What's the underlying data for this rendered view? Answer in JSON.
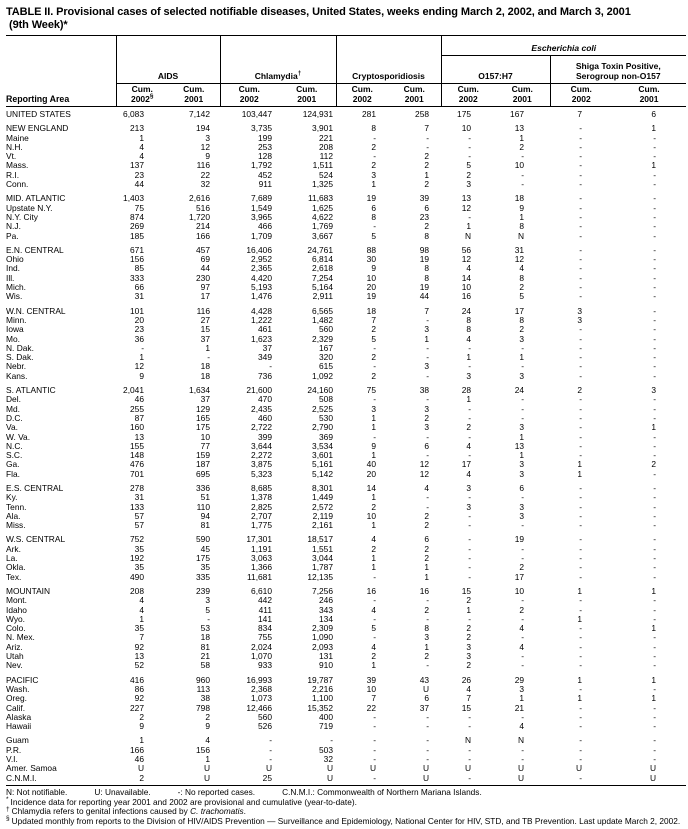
{
  "title": {
    "line1": "TABLE II. Provisional cases of selected notifiable diseases, United States, weeks ending March 2, 2002, and March 3, 2001",
    "line2": "(9th Week)*"
  },
  "table": {
    "reporting_area_label": "Reporting Area",
    "ecoli_spanner": "Escherichia coli",
    "groups": [
      {
        "label": "AIDS",
        "cols": [
          "Cum.\n2002§",
          "Cum.\n2001"
        ]
      },
      {
        "label": "Chlamydia†",
        "cols": [
          "Cum.\n2002",
          "Cum.\n2001"
        ]
      },
      {
        "label": "Cryptosporidiosis",
        "cols": [
          "Cum.\n2002",
          "Cum.\n2001"
        ]
      },
      {
        "label": "O157:H7",
        "cols": [
          "Cum.\n2002",
          "Cum.\n2001"
        ],
        "parent": "Escherichia coli"
      },
      {
        "label": "Shiga Toxin Positive,\nSerogroup non-O157",
        "cols": [
          "Cum.\n2002",
          "Cum.\n2001"
        ],
        "parent": "Escherichia coli"
      }
    ],
    "rows": [
      {
        "area": "UNITED STATES",
        "group_start": true,
        "values": [
          "6,083",
          "7,142",
          "103,447",
          "124,931",
          "281",
          "258",
          "175",
          "167",
          "7",
          "6"
        ]
      },
      {
        "area": "NEW ENGLAND",
        "group_start": true,
        "values": [
          "213",
          "194",
          "3,735",
          "3,901",
          "8",
          "7",
          "10",
          "13",
          "-",
          "1"
        ]
      },
      {
        "area": "Maine",
        "group_start": false,
        "values": [
          "1",
          "3",
          "199",
          "221",
          "-",
          "-",
          "-",
          "1",
          "-",
          "-"
        ]
      },
      {
        "area": "N.H.",
        "group_start": false,
        "values": [
          "4",
          "12",
          "253",
          "208",
          "2",
          "-",
          "-",
          "2",
          "-",
          "-"
        ]
      },
      {
        "area": "Vt.",
        "group_start": false,
        "values": [
          "4",
          "9",
          "128",
          "112",
          "-",
          "2",
          "-",
          "-",
          "-",
          "-"
        ]
      },
      {
        "area": "Mass.",
        "group_start": false,
        "values": [
          "137",
          "116",
          "1,792",
          "1,511",
          "2",
          "2",
          "5",
          "10",
          "-",
          "1"
        ]
      },
      {
        "area": "R.I.",
        "group_start": false,
        "values": [
          "23",
          "22",
          "452",
          "524",
          "3",
          "1",
          "2",
          "-",
          "-",
          "-"
        ]
      },
      {
        "area": "Conn.",
        "group_start": false,
        "values": [
          "44",
          "32",
          "911",
          "1,325",
          "1",
          "2",
          "3",
          "-",
          "-",
          "-"
        ]
      },
      {
        "area": "MID. ATLANTIC",
        "group_start": true,
        "values": [
          "1,403",
          "2,616",
          "7,689",
          "11,683",
          "19",
          "39",
          "13",
          "18",
          "-",
          "-"
        ]
      },
      {
        "area": "Upstate N.Y.",
        "group_start": false,
        "values": [
          "75",
          "516",
          "1,549",
          "1,625",
          "6",
          "6",
          "12",
          "9",
          "-",
          "-"
        ]
      },
      {
        "area": "N.Y. City",
        "group_start": false,
        "values": [
          "874",
          "1,720",
          "3,965",
          "4,622",
          "8",
          "23",
          "-",
          "1",
          "-",
          "-"
        ]
      },
      {
        "area": "N.J.",
        "group_start": false,
        "values": [
          "269",
          "214",
          "466",
          "1,769",
          "-",
          "2",
          "1",
          "8",
          "-",
          "-"
        ]
      },
      {
        "area": "Pa.",
        "group_start": false,
        "values": [
          "185",
          "166",
          "1,709",
          "3,667",
          "5",
          "8",
          "N",
          "N",
          "-",
          "-"
        ]
      },
      {
        "area": "E.N. CENTRAL",
        "group_start": true,
        "values": [
          "671",
          "457",
          "16,406",
          "24,761",
          "88",
          "98",
          "56",
          "31",
          "-",
          "-"
        ]
      },
      {
        "area": "Ohio",
        "group_start": false,
        "values": [
          "156",
          "69",
          "2,952",
          "6,814",
          "30",
          "19",
          "12",
          "12",
          "-",
          "-"
        ]
      },
      {
        "area": "Ind.",
        "group_start": false,
        "values": [
          "85",
          "44",
          "2,365",
          "2,618",
          "9",
          "8",
          "4",
          "4",
          "-",
          "-"
        ]
      },
      {
        "area": "Ill.",
        "group_start": false,
        "values": [
          "333",
          "230",
          "4,420",
          "7,254",
          "10",
          "8",
          "14",
          "8",
          "-",
          "-"
        ]
      },
      {
        "area": "Mich.",
        "group_start": false,
        "values": [
          "66",
          "97",
          "5,193",
          "5,164",
          "20",
          "19",
          "10",
          "2",
          "-",
          "-"
        ]
      },
      {
        "area": "Wis.",
        "group_start": false,
        "values": [
          "31",
          "17",
          "1,476",
          "2,911",
          "19",
          "44",
          "16",
          "5",
          "-",
          "-"
        ]
      },
      {
        "area": "W.N. CENTRAL",
        "group_start": true,
        "values": [
          "101",
          "116",
          "4,428",
          "6,565",
          "18",
          "7",
          "24",
          "17",
          "3",
          "-"
        ]
      },
      {
        "area": "Minn.",
        "group_start": false,
        "values": [
          "20",
          "27",
          "1,222",
          "1,482",
          "7",
          "-",
          "8",
          "8",
          "3",
          "-"
        ]
      },
      {
        "area": "Iowa",
        "group_start": false,
        "values": [
          "23",
          "15",
          "461",
          "560",
          "2",
          "3",
          "8",
          "2",
          "-",
          "-"
        ]
      },
      {
        "area": "Mo.",
        "group_start": false,
        "values": [
          "36",
          "37",
          "1,623",
          "2,329",
          "5",
          "1",
          "4",
          "3",
          "-",
          "-"
        ]
      },
      {
        "area": "N. Dak.",
        "group_start": false,
        "values": [
          "-",
          "1",
          "37",
          "167",
          "-",
          "-",
          "-",
          "-",
          "-",
          "-"
        ]
      },
      {
        "area": "S. Dak.",
        "group_start": false,
        "values": [
          "1",
          "-",
          "349",
          "320",
          "2",
          "-",
          "1",
          "1",
          "-",
          "-"
        ]
      },
      {
        "area": "Nebr.",
        "group_start": false,
        "values": [
          "12",
          "18",
          "-",
          "615",
          "-",
          "3",
          "-",
          "-",
          "-",
          "-"
        ]
      },
      {
        "area": "Kans.",
        "group_start": false,
        "values": [
          "9",
          "18",
          "736",
          "1,092",
          "2",
          "-",
          "3",
          "3",
          "-",
          "-"
        ]
      },
      {
        "area": "S. ATLANTIC",
        "group_start": true,
        "values": [
          "2,041",
          "1,634",
          "21,600",
          "24,160",
          "75",
          "38",
          "28",
          "24",
          "2",
          "3"
        ]
      },
      {
        "area": "Del.",
        "group_start": false,
        "values": [
          "46",
          "37",
          "470",
          "508",
          "-",
          "-",
          "1",
          "-",
          "-",
          "-"
        ]
      },
      {
        "area": "Md.",
        "group_start": false,
        "values": [
          "255",
          "129",
          "2,435",
          "2,525",
          "3",
          "3",
          "-",
          "-",
          "-",
          "-"
        ]
      },
      {
        "area": "D.C.",
        "group_start": false,
        "values": [
          "87",
          "165",
          "460",
          "530",
          "1",
          "2",
          "-",
          "-",
          "-",
          "-"
        ]
      },
      {
        "area": "Va.",
        "group_start": false,
        "values": [
          "160",
          "175",
          "2,722",
          "2,790",
          "1",
          "3",
          "2",
          "3",
          "-",
          "1"
        ]
      },
      {
        "area": "W. Va.",
        "group_start": false,
        "values": [
          "13",
          "10",
          "399",
          "369",
          "-",
          "-",
          "-",
          "1",
          "-",
          "-"
        ]
      },
      {
        "area": "N.C.",
        "group_start": false,
        "values": [
          "155",
          "77",
          "3,644",
          "3,534",
          "9",
          "6",
          "4",
          "13",
          "-",
          "-"
        ]
      },
      {
        "area": "S.C.",
        "group_start": false,
        "values": [
          "148",
          "159",
          "2,272",
          "3,601",
          "1",
          "-",
          "-",
          "1",
          "-",
          "-"
        ]
      },
      {
        "area": "Ga.",
        "group_start": false,
        "values": [
          "476",
          "187",
          "3,875",
          "5,161",
          "40",
          "12",
          "17",
          "3",
          "1",
          "2"
        ]
      },
      {
        "area": "Fla.",
        "group_start": false,
        "values": [
          "701",
          "695",
          "5,323",
          "5,142",
          "20",
          "12",
          "4",
          "3",
          "1",
          "-"
        ]
      },
      {
        "area": "E.S. CENTRAL",
        "group_start": true,
        "values": [
          "278",
          "336",
          "8,685",
          "8,301",
          "14",
          "4",
          "3",
          "6",
          "-",
          "-"
        ]
      },
      {
        "area": "Ky.",
        "group_start": false,
        "values": [
          "31",
          "51",
          "1,378",
          "1,449",
          "1",
          "-",
          "-",
          "-",
          "-",
          "-"
        ]
      },
      {
        "area": "Tenn.",
        "group_start": false,
        "values": [
          "133",
          "110",
          "2,825",
          "2,572",
          "2",
          "-",
          "3",
          "3",
          "-",
          "-"
        ]
      },
      {
        "area": "Ala.",
        "group_start": false,
        "values": [
          "57",
          "94",
          "2,707",
          "2,119",
          "10",
          "2",
          "-",
          "3",
          "-",
          "-"
        ]
      },
      {
        "area": "Miss.",
        "group_start": false,
        "values": [
          "57",
          "81",
          "1,775",
          "2,161",
          "1",
          "2",
          "-",
          "-",
          "-",
          "-"
        ]
      },
      {
        "area": "W.S. CENTRAL",
        "group_start": true,
        "values": [
          "752",
          "590",
          "17,301",
          "18,517",
          "4",
          "6",
          "-",
          "19",
          "-",
          "-"
        ]
      },
      {
        "area": "Ark.",
        "group_start": false,
        "values": [
          "35",
          "45",
          "1,191",
          "1,551",
          "2",
          "2",
          "-",
          "-",
          "-",
          "-"
        ]
      },
      {
        "area": "La.",
        "group_start": false,
        "values": [
          "192",
          "175",
          "3,063",
          "3,044",
          "1",
          "2",
          "-",
          "-",
          "-",
          "-"
        ]
      },
      {
        "area": "Okla.",
        "group_start": false,
        "values": [
          "35",
          "35",
          "1,366",
          "1,787",
          "1",
          "1",
          "-",
          "2",
          "-",
          "-"
        ]
      },
      {
        "area": "Tex.",
        "group_start": false,
        "values": [
          "490",
          "335",
          "11,681",
          "12,135",
          "-",
          "1",
          "-",
          "17",
          "-",
          "-"
        ]
      },
      {
        "area": "MOUNTAIN",
        "group_start": true,
        "values": [
          "208",
          "239",
          "6,610",
          "7,256",
          "16",
          "16",
          "15",
          "10",
          "1",
          "1"
        ]
      },
      {
        "area": "Mont.",
        "group_start": false,
        "values": [
          "4",
          "3",
          "442",
          "246",
          "-",
          "-",
          "2",
          "-",
          "-",
          "-"
        ]
      },
      {
        "area": "Idaho",
        "group_start": false,
        "values": [
          "4",
          "5",
          "411",
          "343",
          "4",
          "2",
          "1",
          "2",
          "-",
          "-"
        ]
      },
      {
        "area": "Wyo.",
        "group_start": false,
        "values": [
          "1",
          "-",
          "141",
          "134",
          "-",
          "-",
          "-",
          "-",
          "1",
          "-"
        ]
      },
      {
        "area": "Colo.",
        "group_start": false,
        "values": [
          "35",
          "53",
          "834",
          "2,309",
          "5",
          "8",
          "2",
          "4",
          "-",
          "1"
        ]
      },
      {
        "area": "N. Mex.",
        "group_start": false,
        "values": [
          "7",
          "18",
          "755",
          "1,090",
          "-",
          "3",
          "2",
          "-",
          "-",
          "-"
        ]
      },
      {
        "area": "Ariz.",
        "group_start": false,
        "values": [
          "92",
          "81",
          "2,024",
          "2,093",
          "4",
          "1",
          "3",
          "4",
          "-",
          "-"
        ]
      },
      {
        "area": "Utah",
        "group_start": false,
        "values": [
          "13",
          "21",
          "1,070",
          "131",
          "2",
          "2",
          "3",
          "-",
          "-",
          "-"
        ]
      },
      {
        "area": "Nev.",
        "group_start": false,
        "values": [
          "52",
          "58",
          "933",
          "910",
          "1",
          "-",
          "2",
          "-",
          "-",
          "-"
        ]
      },
      {
        "area": "PACIFIC",
        "group_start": true,
        "values": [
          "416",
          "960",
          "16,993",
          "19,787",
          "39",
          "43",
          "26",
          "29",
          "1",
          "1"
        ]
      },
      {
        "area": "Wash.",
        "group_start": false,
        "values": [
          "86",
          "113",
          "2,368",
          "2,216",
          "10",
          "U",
          "4",
          "3",
          "-",
          "-"
        ]
      },
      {
        "area": "Oreg.",
        "group_start": false,
        "values": [
          "92",
          "38",
          "1,073",
          "1,100",
          "7",
          "6",
          "7",
          "1",
          "1",
          "1"
        ]
      },
      {
        "area": "Calif.",
        "group_start": false,
        "values": [
          "227",
          "798",
          "12,466",
          "15,352",
          "22",
          "37",
          "15",
          "21",
          "-",
          "-"
        ]
      },
      {
        "area": "Alaska",
        "group_start": false,
        "values": [
          "2",
          "2",
          "560",
          "400",
          "-",
          "-",
          "-",
          "-",
          "-",
          "-"
        ]
      },
      {
        "area": "Hawaii",
        "group_start": false,
        "values": [
          "9",
          "9",
          "526",
          "719",
          "-",
          "-",
          "-",
          "4",
          "-",
          "-"
        ]
      },
      {
        "area": "Guam",
        "group_start": true,
        "values": [
          "1",
          "4",
          "-",
          "-",
          "-",
          "-",
          "N",
          "N",
          "-",
          "-"
        ]
      },
      {
        "area": "P.R.",
        "group_start": false,
        "values": [
          "166",
          "156",
          "-",
          "503",
          "-",
          "-",
          "-",
          "-",
          "-",
          "-"
        ]
      },
      {
        "area": "V.I.",
        "group_start": false,
        "values": [
          "46",
          "1",
          "-",
          "32",
          "-",
          "-",
          "-",
          "-",
          "-",
          "-"
        ]
      },
      {
        "area": "Amer. Samoa",
        "group_start": false,
        "values": [
          "U",
          "U",
          "U",
          "U",
          "U",
          "U",
          "U",
          "U",
          "U",
          "U"
        ]
      },
      {
        "area": "C.N.M.I.",
        "group_start": false,
        "values": [
          "2",
          "U",
          "25",
          "U",
          "-",
          "U",
          "-",
          "U",
          "-",
          "U"
        ]
      }
    ]
  },
  "footnotes": {
    "legend": [
      "N: Not notifiable.",
      "U: Unavailable.",
      "-: No reported cases.",
      "C.N.M.I.: Commonwealth of Northern Mariana Islands."
    ],
    "fn1": {
      "marker": "*",
      "text": "Incidence data for reporting year 2001 and 2002 are provisional and cumulative (year-to-date)."
    },
    "fn2": {
      "marker": "†",
      "prefix": "Chlamydia refers to genital infections caused by ",
      "italic": "C. trachomatis",
      "suffix": "."
    },
    "fn3": {
      "marker": "§",
      "text": "Updated monthly from reports to the Division of HIV/AIDS Prevention — Surveillance and Epidemiology, National Center for HIV, STD, and TB Prevention. Last update March 2, 2002."
    }
  }
}
